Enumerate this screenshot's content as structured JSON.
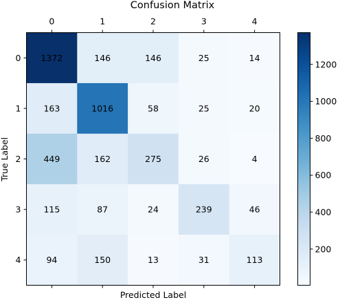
{
  "chart_data": {
    "type": "heatmap",
    "title": "Confusion Matrix",
    "xlabel": "Predicted Label",
    "ylabel": "True Label",
    "x_categories": [
      "0",
      "1",
      "2",
      "3",
      "4"
    ],
    "y_categories": [
      "0",
      "1",
      "2",
      "3",
      "4"
    ],
    "matrix": [
      [
        1372,
        146,
        146,
        25,
        14
      ],
      [
        163,
        1016,
        58,
        25,
        20
      ],
      [
        449,
        162,
        275,
        26,
        4
      ],
      [
        115,
        87,
        24,
        239,
        46
      ],
      [
        94,
        150,
        13,
        31,
        113
      ]
    ],
    "colormap": "Blues",
    "colormap_low": "#f7fbff",
    "colormap_high": "#08306b",
    "colorbar": {
      "range": [
        4,
        1372
      ],
      "ticks": [
        200,
        400,
        600,
        800,
        1000,
        1200
      ]
    },
    "x_axis_position": "top",
    "grid": false
  }
}
